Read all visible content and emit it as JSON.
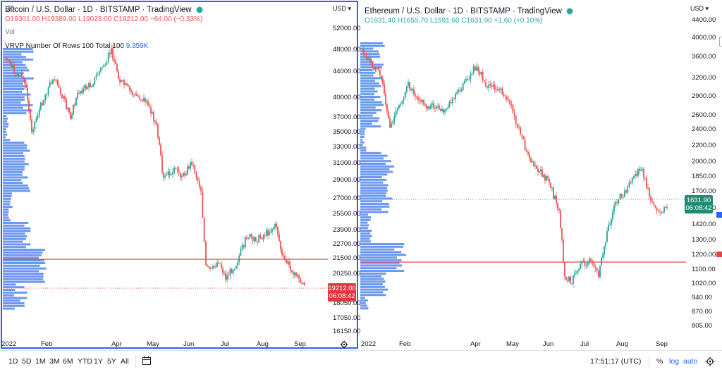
{
  "left": {
    "title": "Bitcoin / U.S. Dollar · 1D · BITSTAMP · TradingView",
    "ohlc": {
      "o": "O19301.00",
      "h": "H19389.00",
      "l": "L19023.00",
      "c": "C19212.00",
      "chg": "−64.00 (−0.33%)"
    },
    "vol_label": "Vol",
    "vrvp_label": "VRVP Number Of Rows 100 Total 100",
    "vrvp_value": "9.359K",
    "currency": "USD",
    "price_ticks": [
      "52000.00",
      "48000.00",
      "44000.00",
      "40000.00",
      "37000.00",
      "35000.00",
      "33000.00",
      "31000.00",
      "29000.00",
      "27000.00",
      "25500.00",
      "23900.00",
      "22700.00",
      "21500.00",
      "20250.00",
      "18050.00",
      "17050.00",
      "16150.00"
    ],
    "last_price": "19212.00",
    "countdown": "06:08:42",
    "time_ticks": [
      "2022",
      "Feb",
      "Apr",
      "May",
      "Jun",
      "Jul",
      "Aug",
      "Sep"
    ]
  },
  "right": {
    "title": "Ethereum / U.S. Dollar · 1D · BITSTAMP · TradingView",
    "ohlc": {
      "o": "O1631.40",
      "h": "H1655.70",
      "l": "L1591.60",
      "c": "C1631.90",
      "chg": "+1.60 (+0.10%)"
    },
    "currency": "USD",
    "price_ticks": [
      "4400.00",
      "4000.00",
      "3600.00",
      "3200.00",
      "2900.00",
      "2600.00",
      "2400.00",
      "2200.00",
      "2000.00",
      "1850.00",
      "1700.00",
      "1540.00",
      "1420.00",
      "1300.00",
      "1200.00",
      "1100.00",
      "1020.00",
      "940.00",
      "870.00",
      "805.00"
    ],
    "last_price": "1631.90",
    "countdown": "06:08:42",
    "time_ticks": [
      "2022",
      "Feb",
      "Apr",
      "May",
      "Jun",
      "Jul",
      "Aug",
      "Sep"
    ]
  },
  "bottom": {
    "ranges": [
      "1D",
      "5D",
      "1M",
      "3M",
      "6M",
      "YTD",
      "1Y",
      "5Y",
      "All"
    ],
    "clock": "17:51:17 (UTC)",
    "percent": "%",
    "log": "log",
    "auto": "auto"
  },
  "colors": {
    "up": "#26a69a",
    "down": "#ef5350",
    "accent": "#2962ff",
    "profile": "#5b8def",
    "poc": "#e04646"
  }
}
